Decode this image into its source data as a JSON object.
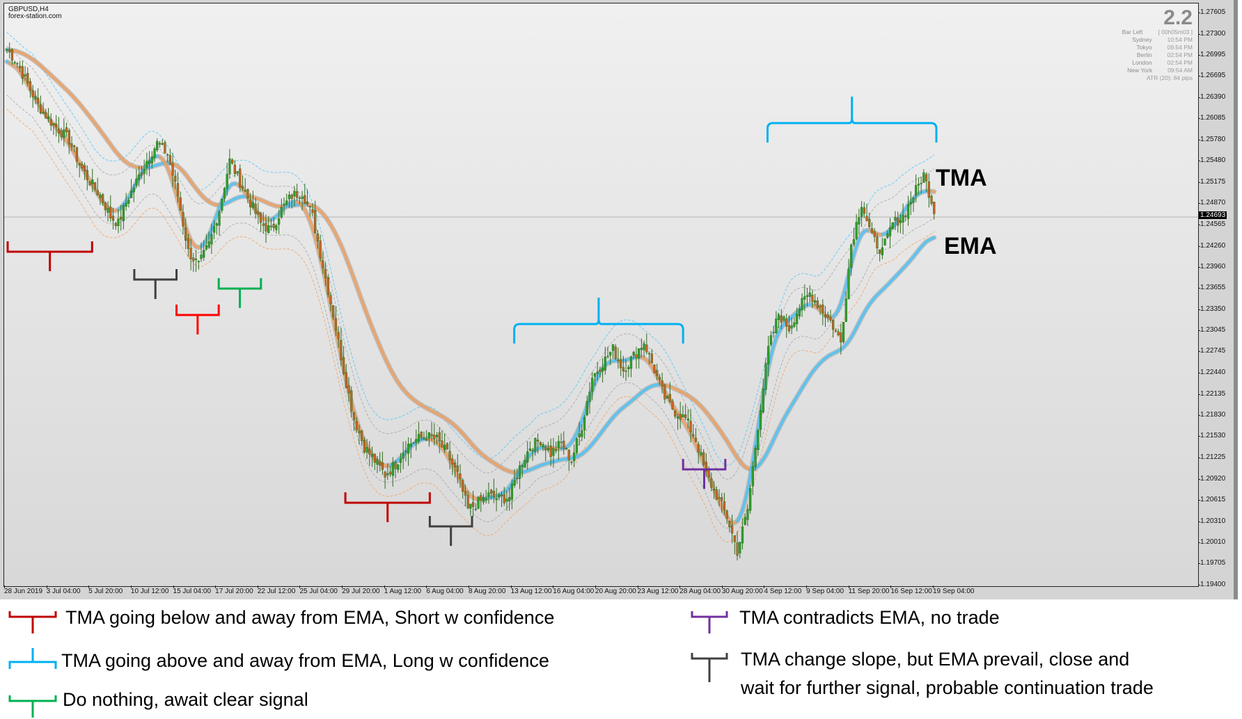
{
  "window": {
    "symbol": "GBPUSD,H4",
    "site": "forex-station.com"
  },
  "info_panel": {
    "spread": "2.2",
    "rows": [
      {
        "label": "Bar Left",
        "value": "[ 00h05m03 ]"
      },
      {
        "label": "Sydney",
        "value": "10:54 PM"
      },
      {
        "label": "Tokyo",
        "value": "09:54 PM"
      },
      {
        "label": "Berlin",
        "value": "02:54 PM"
      },
      {
        "label": "London",
        "value": "02:54 PM"
      },
      {
        "label": "New York",
        "value": "09:54 AM"
      }
    ],
    "atr": "ATR (20): 84 pips"
  },
  "current_price": "1.24693",
  "annotations": {
    "tma_label": "TMA",
    "ema_label": "EMA"
  },
  "legend": [
    {
      "color": "#c00000",
      "text": "TMA going below and away from EMA, Short w confidence"
    },
    {
      "color": "#00b0f0",
      "text": "TMA going above and away from EMA, Long w confidence"
    },
    {
      "color": "#00b050",
      "text": "Do nothing, await clear signal"
    },
    {
      "color": "#7030a0",
      "text": "TMA contradicts EMA, no trade"
    },
    {
      "color": "#404040",
      "text_line1": "TMA change slope, but EMA prevail, close and",
      "text_line2": "wait for further signal, probable continuation trade"
    }
  ],
  "colors": {
    "bull": "#2ea02e",
    "bear": "#c86428",
    "tma_up": "#4fc3f7",
    "tma_down": "#f0a060",
    "tma_halo": "#a0a0a0",
    "band_blue": "#4fc3f7",
    "band_orange": "#f0a060",
    "band_gray": "#909090"
  },
  "chart_data": {
    "type": "candlestick",
    "title": "GBPUSD,H4",
    "ylim": [
      1.194,
      1.27605
    ],
    "y_ticks": [
      "1.27605",
      "1.27300",
      "1.26995",
      "1.26695",
      "1.26390",
      "1.26085",
      "1.25780",
      "1.25480",
      "1.25175",
      "1.24870",
      "1.24565",
      "1.24260",
      "1.23960",
      "1.23655",
      "1.23350",
      "1.23045",
      "1.22745",
      "1.22440",
      "1.22135",
      "1.21830",
      "1.21530",
      "1.21225",
      "1.20920",
      "1.20615",
      "1.20310",
      "1.20010",
      "1.19705",
      "1.19400"
    ],
    "x_ticks": [
      "28 Jun 2019",
      "3 Jul 04:00",
      "5 Jul 20:00",
      "10 Jul 12:00",
      "15 Jul 04:00",
      "17 Jul 20:00",
      "22 Jul 12:00",
      "25 Jul 04:00",
      "29 Jul 20:00",
      "1 Aug 12:00",
      "6 Aug 04:00",
      "8 Aug 20:00",
      "13 Aug 12:00",
      "16 Aug 04:00",
      "20 Aug 20:00",
      "23 Aug 12:00",
      "28 Aug 04:00",
      "30 Aug 20:00",
      "4 Sep 12:00",
      "9 Sep 04:00",
      "11 Sep 20:00",
      "16 Sep 12:00",
      "19 Sep 04:00"
    ],
    "last_price": 1.24693,
    "price_path": [
      [
        0,
        1.271
      ],
      [
        4,
        1.269
      ],
      [
        8,
        1.266
      ],
      [
        12,
        1.263
      ],
      [
        16,
        1.261
      ],
      [
        20,
        1.2595
      ],
      [
        24,
        1.258
      ],
      [
        28,
        1.2545
      ],
      [
        32,
        1.252
      ],
      [
        36,
        1.25
      ],
      [
        40,
        1.247
      ],
      [
        43,
        1.246
      ],
      [
        46,
        1.249
      ],
      [
        50,
        1.252
      ],
      [
        54,
        1.255
      ],
      [
        58,
        1.2575
      ],
      [
        62,
        1.256
      ],
      [
        66,
        1.25
      ],
      [
        70,
        1.242
      ],
      [
        74,
        1.24
      ],
      [
        78,
        1.243
      ],
      [
        82,
        1.248
      ],
      [
        86,
        1.255
      ],
      [
        90,
        1.252
      ],
      [
        94,
        1.249
      ],
      [
        98,
        1.246
      ],
      [
        102,
        1.245
      ],
      [
        106,
        1.248
      ],
      [
        110,
        1.25
      ],
      [
        114,
        1.2505
      ],
      [
        118,
        1.247
      ],
      [
        122,
        1.24
      ],
      [
        126,
        1.233
      ],
      [
        130,
        1.225
      ],
      [
        134,
        1.218
      ],
      [
        138,
        1.214
      ],
      [
        142,
        1.212
      ],
      [
        146,
        1.21
      ],
      [
        150,
        1.2115
      ],
      [
        154,
        1.214
      ],
      [
        158,
        1.215
      ],
      [
        162,
        1.2155
      ],
      [
        166,
        1.215
      ],
      [
        170,
        1.213
      ],
      [
        174,
        1.21
      ],
      [
        178,
        1.205
      ],
      [
        182,
        1.206
      ],
      [
        186,
        1.207
      ],
      [
        190,
        1.2065
      ],
      [
        194,
        1.2068
      ],
      [
        198,
        1.211
      ],
      [
        202,
        1.214
      ],
      [
        206,
        1.215
      ],
      [
        210,
        1.213
      ],
      [
        214,
        1.2145
      ],
      [
        218,
        1.212
      ],
      [
        222,
        1.217
      ],
      [
        226,
        1.224
      ],
      [
        230,
        1.226
      ],
      [
        234,
        1.228
      ],
      [
        238,
        1.225
      ],
      [
        242,
        1.227
      ],
      [
        246,
        1.229
      ],
      [
        250,
        1.225
      ],
      [
        254,
        1.221
      ],
      [
        258,
        1.219
      ],
      [
        262,
        1.218
      ],
      [
        266,
        1.215
      ],
      [
        270,
        1.21
      ],
      [
        274,
        1.207
      ],
      [
        278,
        1.204
      ],
      [
        282,
        1.199
      ],
      [
        286,
        1.205
      ],
      [
        290,
        1.217
      ],
      [
        294,
        1.228
      ],
      [
        298,
        1.233
      ],
      [
        302,
        1.231
      ],
      [
        306,
        1.234
      ],
      [
        310,
        1.236
      ],
      [
        314,
        1.234
      ],
      [
        318,
        1.232
      ],
      [
        322,
        1.229
      ],
      [
        326,
        1.243
      ],
      [
        330,
        1.249
      ],
      [
        334,
        1.244
      ],
      [
        338,
        1.242
      ],
      [
        342,
        1.246
      ],
      [
        346,
        1.247
      ],
      [
        350,
        1.25
      ],
      [
        354,
        1.253
      ],
      [
        358,
        1.248
      ]
    ],
    "brackets": [
      {
        "color": "red",
        "from": "28 Jun 2019",
        "to": "5 Jul 20:00",
        "meaning": "short"
      },
      {
        "color": "black",
        "from": "10 Jul 12:00",
        "to": "15 Jul 04:00",
        "meaning": "continuation"
      },
      {
        "color": "red",
        "from": "15 Jul 04:00",
        "to": "17 Jul 20:00",
        "meaning": "short"
      },
      {
        "color": "green",
        "from": "17 Jul 20:00",
        "to": "22 Jul 12:00",
        "meaning": "do nothing"
      },
      {
        "color": "red",
        "from": "29 Jul 20:00",
        "to": "6 Aug 04:00",
        "meaning": "short"
      },
      {
        "color": "black",
        "from": "6 Aug 04:00",
        "to": "8 Aug 20:00",
        "meaning": "continuation"
      },
      {
        "color": "blue",
        "from": "13 Aug 12:00",
        "to": "28 Aug 04:00",
        "meaning": "long"
      },
      {
        "color": "purple",
        "from": "28 Aug 04:00",
        "to": "30 Aug 20:00",
        "meaning": "no trade"
      },
      {
        "color": "blue",
        "from": "4 Sep 12:00",
        "to": "19 Sep 04:00",
        "meaning": "long"
      }
    ]
  }
}
